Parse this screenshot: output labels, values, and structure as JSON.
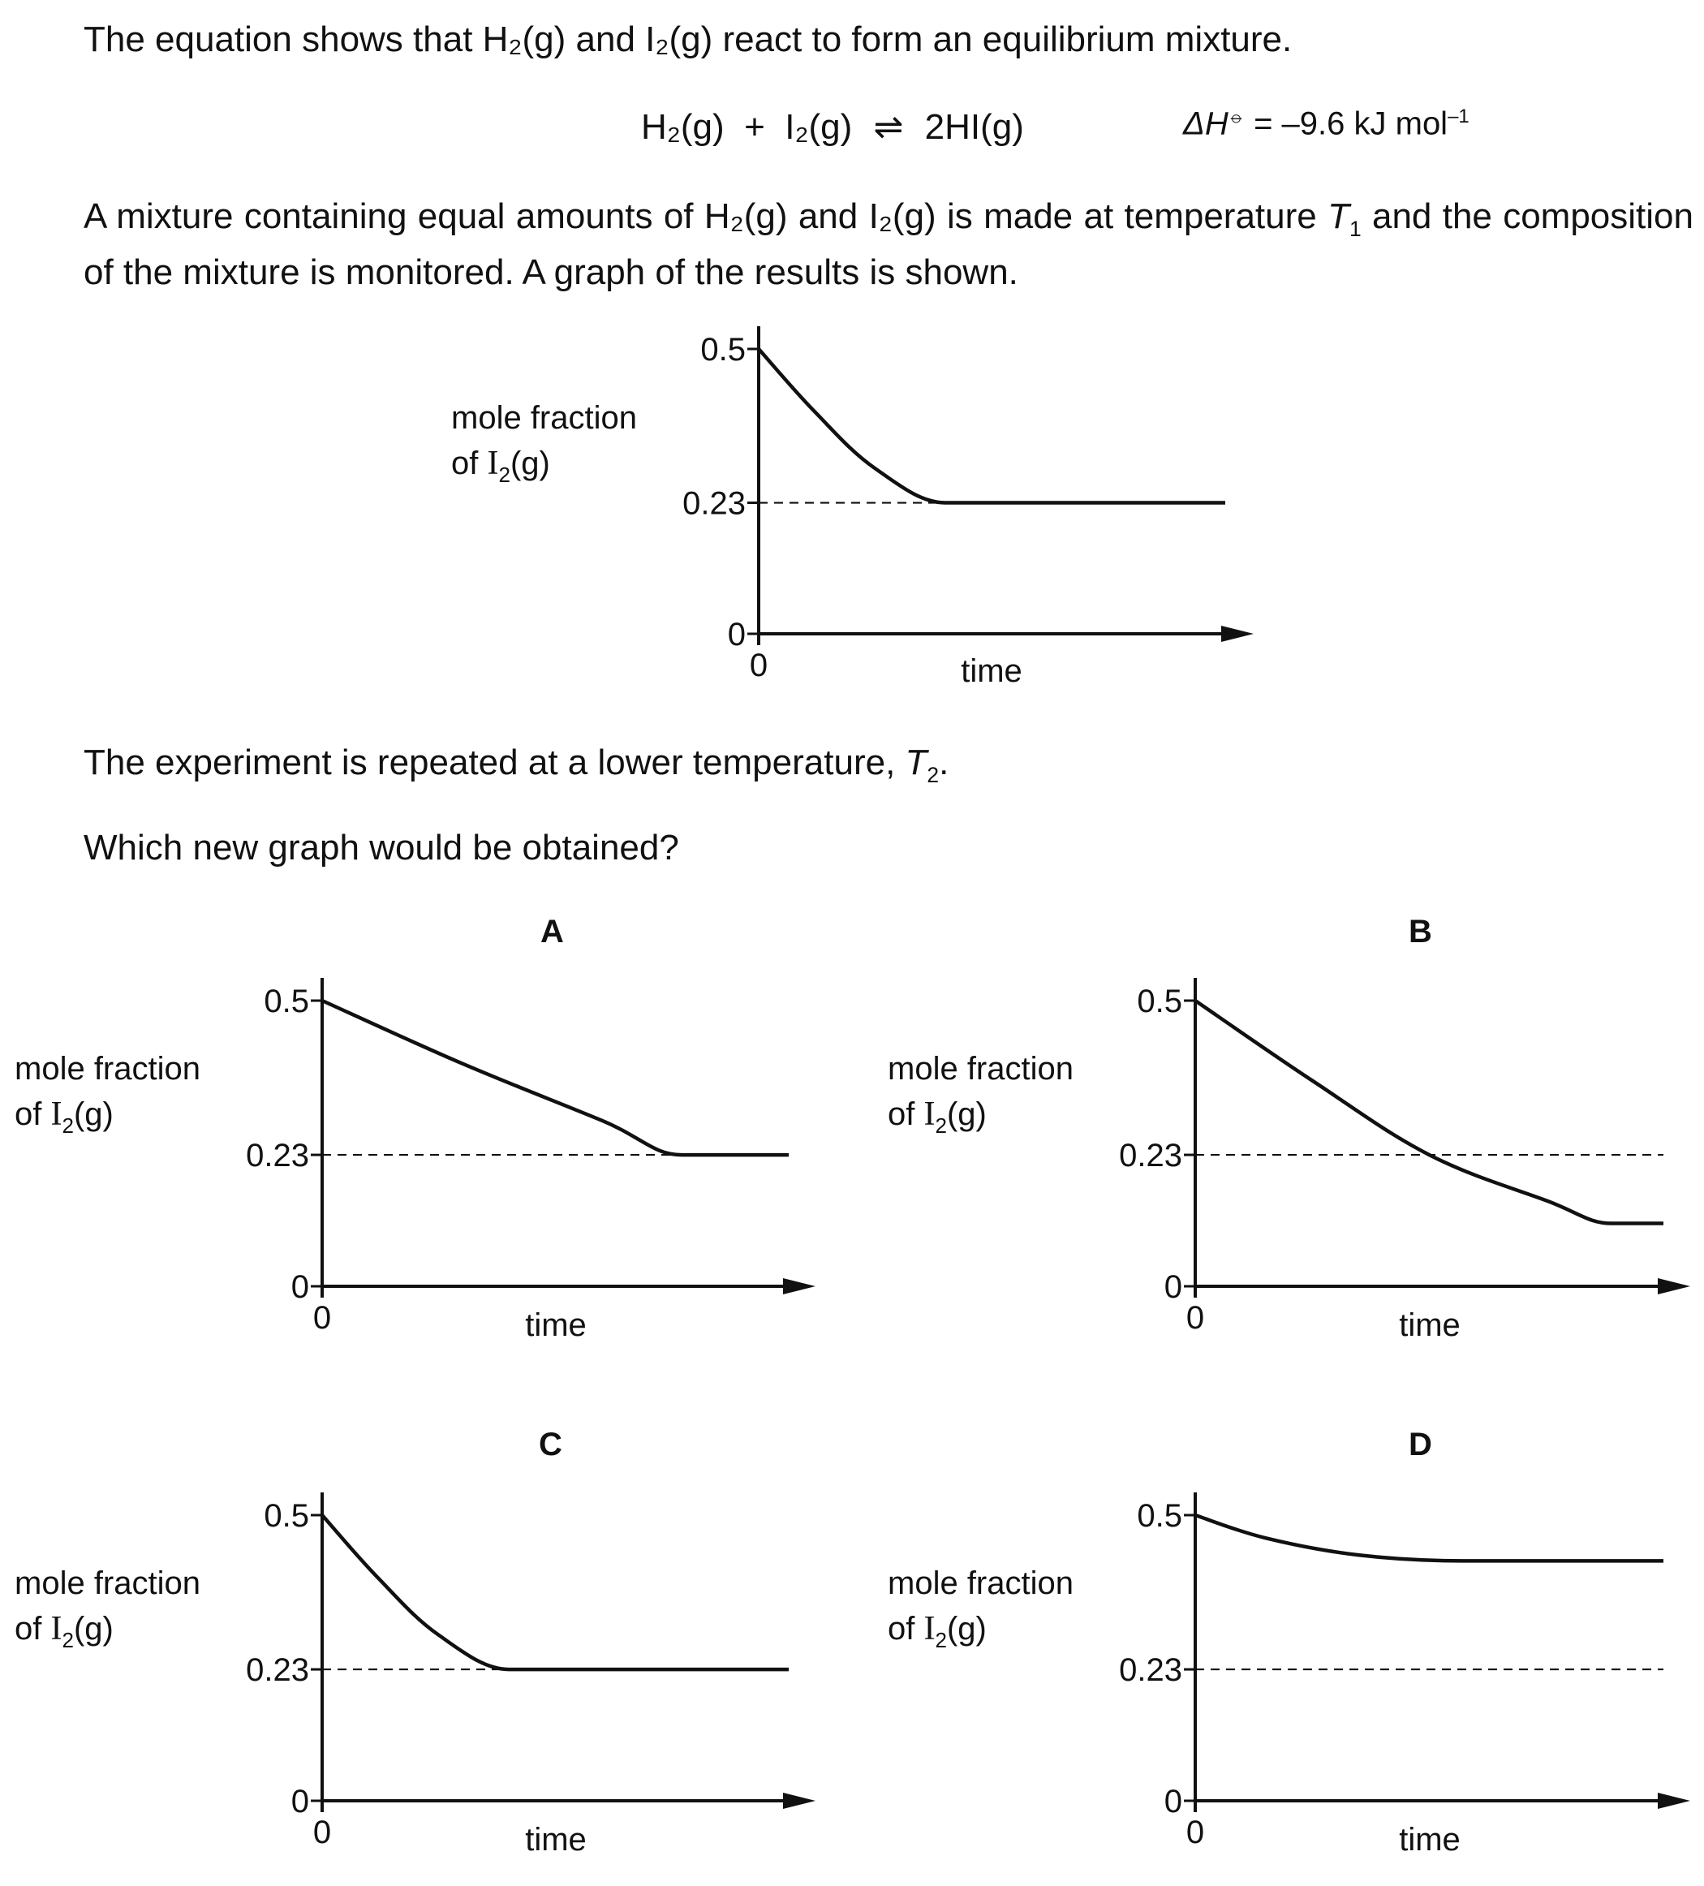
{
  "question": {
    "intro": "The equation shows that H₂(g) and I₂(g) react to form an equilibrium mixture.",
    "equation": {
      "lhs": "H₂(g)  +  I₂(g)",
      "arrow": "⇌",
      "rhs": "2HI(g)",
      "enthalpy_symbol": "ΔH",
      "enthalpy_superscript": "⦵",
      "enthalpy_value": " = –9.6 kJ mol",
      "enthalpy_unit_exp": "–1"
    },
    "mixture_text_pre": "A mixture containing equal amounts of H₂(g) and I₂(g) is made at temperature ",
    "t1_symbol": "T",
    "t1_sub": "1",
    "mixture_text_post": " and the composition of the mixture is monitored. A graph of the results is shown.",
    "repeat_text": "The experiment is repeated at a lower temperature, ",
    "t2_symbol": "T",
    "t2_sub": "2",
    "repeat_end": ".",
    "prompt": "Which new graph would be obtained?"
  },
  "axis_text": {
    "ylabel_line1": "mole fraction",
    "ylabel_line2_pre": "of I",
    "ylabel_line2_sub": "2",
    "ylabel_line2_post": "(g)",
    "xlabel": "time",
    "x_origin": "0",
    "y_ticks": [
      "0",
      "0.23",
      "0.5"
    ]
  },
  "chart_data": [
    {
      "id": "given",
      "type": "line",
      "label": "",
      "xlabel": "time",
      "ylabel": "mole fraction of I₂(g)",
      "ylim": [
        0,
        0.5
      ],
      "y_ticks": [
        0,
        0.23,
        0.5
      ],
      "reference_line": 0.23,
      "series": [
        {
          "x": [
            0,
            0.12,
            0.25,
            0.4,
            1.0
          ],
          "y": [
            0.5,
            0.39,
            0.29,
            0.23,
            0.23
          ]
        }
      ]
    },
    {
      "id": "A",
      "type": "line",
      "label": "A",
      "xlabel": "time",
      "ylabel": "mole fraction of I₂(g)",
      "ylim": [
        0,
        0.5
      ],
      "y_ticks": [
        0,
        0.23,
        0.5
      ],
      "reference_line": 0.23,
      "series": [
        {
          "x": [
            0,
            0.3,
            0.6,
            0.77,
            1.0
          ],
          "y": [
            0.5,
            0.39,
            0.29,
            0.23,
            0.23
          ]
        }
      ]
    },
    {
      "id": "B",
      "type": "line",
      "label": "B",
      "xlabel": "time",
      "ylabel": "mole fraction of I₂(g)",
      "ylim": [
        0,
        0.5
      ],
      "y_ticks": [
        0,
        0.23,
        0.5
      ],
      "reference_line": 0.23,
      "series": [
        {
          "x": [
            0,
            0.25,
            0.5,
            0.75,
            0.89,
            1.0
          ],
          "y": [
            0.5,
            0.36,
            0.23,
            0.15,
            0.11,
            0.11
          ]
        }
      ]
    },
    {
      "id": "C",
      "type": "line",
      "label": "C",
      "xlabel": "time",
      "ylabel": "mole fraction of I₂(g)",
      "ylim": [
        0,
        0.5
      ],
      "y_ticks": [
        0,
        0.23,
        0.5
      ],
      "reference_line": 0.23,
      "series": [
        {
          "x": [
            0,
            0.12,
            0.25,
            0.4,
            1.0
          ],
          "y": [
            0.5,
            0.39,
            0.29,
            0.23,
            0.23
          ]
        }
      ]
    },
    {
      "id": "D",
      "type": "line",
      "label": "D",
      "xlabel": "time",
      "ylabel": "mole fraction of I₂(g)",
      "ylim": [
        0,
        0.5
      ],
      "y_ticks": [
        0,
        0.23,
        0.5
      ],
      "reference_line": 0.23,
      "series": [
        {
          "x": [
            0,
            0.15,
            0.35,
            0.57,
            1.0
          ],
          "y": [
            0.5,
            0.46,
            0.43,
            0.42,
            0.42
          ]
        }
      ]
    }
  ]
}
